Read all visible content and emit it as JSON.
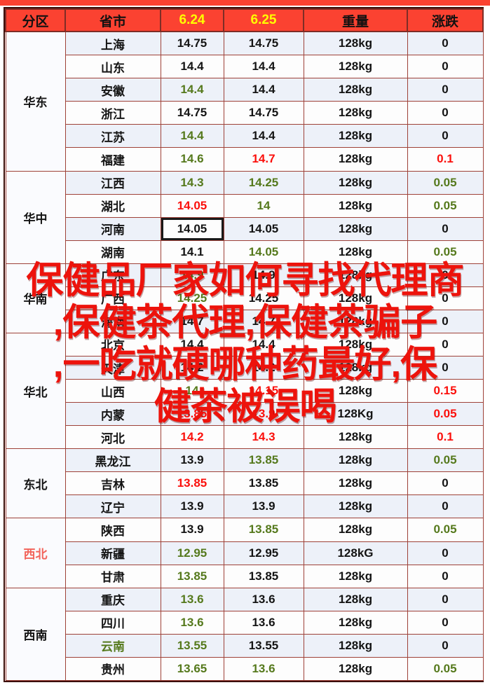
{
  "table": {
    "columns": [
      {
        "label": "分区",
        "color": "k"
      },
      {
        "label": "省市",
        "color": "k"
      },
      {
        "label": "6.24",
        "color": "y"
      },
      {
        "label": "6.25",
        "color": "y"
      },
      {
        "label": "重量",
        "color": "k"
      },
      {
        "label": "涨跌",
        "color": "k"
      }
    ],
    "regions": [
      {
        "name": "华东",
        "nc": "k",
        "rows": [
          {
            "province": "上海",
            "pc": "k",
            "v1": "14.75",
            "c1": "k",
            "v2": "14.75",
            "c2": "k",
            "w": "128kg",
            "chg": "0",
            "c3": "k",
            "sel": false
          },
          {
            "province": "山东",
            "pc": "k",
            "v1": "14.4",
            "c1": "k",
            "v2": "14.4",
            "c2": "k",
            "w": "128kg",
            "chg": "0",
            "c3": "k",
            "sel": false
          },
          {
            "province": "安徽",
            "pc": "k",
            "v1": "14.4",
            "c1": "g",
            "v2": "14.4",
            "c2": "k",
            "w": "128kg",
            "chg": "0",
            "c3": "k",
            "sel": false
          },
          {
            "province": "浙江",
            "pc": "k",
            "v1": "14.75",
            "c1": "k",
            "v2": "14.75",
            "c2": "k",
            "w": "128kg",
            "chg": "0",
            "c3": "k",
            "sel": false
          },
          {
            "province": "江苏",
            "pc": "k",
            "v1": "14.4",
            "c1": "g",
            "v2": "14.4",
            "c2": "k",
            "w": "128kg",
            "chg": "0",
            "c3": "k",
            "sel": false
          },
          {
            "province": "福建",
            "pc": "k",
            "v1": "14.6",
            "c1": "g",
            "v2": "14.7",
            "c2": "r",
            "w": "128kg",
            "chg": "0.1",
            "c3": "r",
            "sel": false
          }
        ]
      },
      {
        "name": "华中",
        "nc": "k",
        "rows": [
          {
            "province": "江西",
            "pc": "k",
            "v1": "14.3",
            "c1": "g",
            "v2": "14.25",
            "c2": "g",
            "w": "128kg",
            "chg": "0.05",
            "c3": "g",
            "sel": false
          },
          {
            "province": "湖北",
            "pc": "k",
            "v1": "14.05",
            "c1": "r",
            "v2": "14",
            "c2": "g",
            "w": "128kg",
            "chg": "0.05",
            "c3": "g",
            "sel": false
          },
          {
            "province": "河南",
            "pc": "k",
            "v1": "14.05",
            "c1": "k",
            "v2": "14.05",
            "c2": "k",
            "w": "128kg",
            "chg": "0",
            "c3": "k",
            "sel": true
          },
          {
            "province": "湖南",
            "pc": "k",
            "v1": "14.1",
            "c1": "k",
            "v2": "14.05",
            "c2": "g",
            "w": "128kg",
            "chg": "0.05",
            "c3": "g",
            "sel": false
          }
        ]
      },
      {
        "name": "华南",
        "nc": "k",
        "rows": [
          {
            "province": "广东",
            "pc": "k",
            "v1": "14.9",
            "c1": "g",
            "v2": "14.9",
            "c2": "k",
            "w": "128kg",
            "chg": "0",
            "c3": "k",
            "sel": false
          },
          {
            "province": "广西",
            "pc": "k",
            "v1": "14.25",
            "c1": "g",
            "v2": "14.25",
            "c2": "k",
            "w": "128kg",
            "chg": "0",
            "c3": "k",
            "sel": false
          },
          {
            "province": "海南",
            "pc": "k",
            "v1": "14.7",
            "c1": "k",
            "v2": "14.7",
            "c2": "k",
            "w": "128kg",
            "chg": "0",
            "c3": "k",
            "sel": false
          }
        ]
      },
      {
        "name": "华北",
        "nc": "k",
        "rows": [
          {
            "province": "北京",
            "pc": "k",
            "v1": "14.4",
            "c1": "k",
            "v2": "14.4",
            "c2": "k",
            "w": "128kg",
            "chg": "0",
            "c3": "k",
            "sel": false
          },
          {
            "province": "天津",
            "pc": "k",
            "v1": "14.2",
            "c1": "k",
            "v2": "14.2",
            "c2": "k",
            "w": "128kg",
            "chg": "0",
            "c3": "k",
            "sel": false
          },
          {
            "province": "山西",
            "pc": "k",
            "v1": "14",
            "c1": "g",
            "v2": "14.15",
            "c2": "r",
            "w": "128kg",
            "chg": "0.15",
            "c3": "r",
            "sel": false
          },
          {
            "province": "内蒙",
            "pc": "k",
            "v1": "13.85",
            "c1": "r",
            "v2": "13.9",
            "c2": "r",
            "w": "128Kg",
            "chg": "0.05",
            "c3": "r",
            "sel": false
          },
          {
            "province": "河北",
            "pc": "k",
            "v1": "14.2",
            "c1": "r",
            "v2": "14.3",
            "c2": "r",
            "w": "128kg",
            "chg": "0.1",
            "c3": "r",
            "sel": false
          }
        ]
      },
      {
        "name": "东北",
        "nc": "k",
        "rows": [
          {
            "province": "黑龙江",
            "pc": "k",
            "v1": "13.9",
            "c1": "k",
            "v2": "13.85",
            "c2": "g",
            "w": "128kg",
            "chg": "0.05",
            "c3": "g",
            "sel": false
          },
          {
            "province": "吉林",
            "pc": "k",
            "v1": "13.85",
            "c1": "r",
            "v2": "13.85",
            "c2": "k",
            "w": "128kg",
            "chg": "0",
            "c3": "k",
            "sel": false
          },
          {
            "province": "辽宁",
            "pc": "k",
            "v1": "13.9",
            "c1": "k",
            "v2": "13.9",
            "c2": "k",
            "w": "128kg",
            "chg": "0",
            "c3": "k",
            "sel": false
          }
        ]
      },
      {
        "name": "西北",
        "nc": "cr",
        "rows": [
          {
            "province": "陕西",
            "pc": "k",
            "v1": "13.9",
            "c1": "k",
            "v2": "13.85",
            "c2": "g",
            "w": "128kg",
            "chg": "0.05",
            "c3": "g",
            "sel": false
          },
          {
            "province": "新疆",
            "pc": "k",
            "v1": "12.95",
            "c1": "g",
            "v2": "12.95",
            "c2": "k",
            "w": "128kG",
            "chg": "0",
            "c3": "k",
            "sel": false
          },
          {
            "province": "甘肃",
            "pc": "k",
            "v1": "13.85",
            "c1": "g",
            "v2": "13.85",
            "c2": "k",
            "w": "128kg",
            "chg": "0",
            "c3": "k",
            "sel": false
          }
        ]
      },
      {
        "name": "西南",
        "nc": "k",
        "rows": [
          {
            "province": "重庆",
            "pc": "k",
            "v1": "13.6",
            "c1": "g",
            "v2": "13.6",
            "c2": "k",
            "w": "128kg",
            "chg": "0",
            "c3": "k",
            "sel": false
          },
          {
            "province": "四川",
            "pc": "k",
            "v1": "13.6",
            "c1": "g",
            "v2": "13.6",
            "c2": "k",
            "w": "128kg",
            "chg": "0",
            "c3": "k",
            "sel": false
          },
          {
            "province": "云南",
            "pc": "g",
            "v1": "13.55",
            "c1": "g",
            "v2": "13.55",
            "c2": "k",
            "w": "128kg",
            "chg": "0",
            "c3": "k",
            "sel": false
          },
          {
            "province": "贵州",
            "pc": "k",
            "v1": "13.65",
            "c1": "g",
            "v2": "13.6",
            "c2": "g",
            "w": "128kg",
            "chg": "0.05",
            "c3": "g",
            "sel": false
          }
        ]
      }
    ]
  },
  "watermark": {
    "full_text": "保健品厂家如何寻找代理商,保健茶代理,保健茶骗子,一吃就硬哪种药最好,保健茶被误喝",
    "lines": [
      "保健品厂家如何寻找代理商",
      ",保健茶代理,保健茶骗子",
      ",一吃就硬哪种药最好,保",
      "健茶被误喝"
    ]
  },
  "colors": {
    "header_bg": "#fb4231",
    "header_date_text": "#ffff00",
    "price_up": "#fb100c",
    "price_down": "#55791c",
    "neutral": "#141414",
    "watermark_text": "#ed130c",
    "grid_border": "#9e4138",
    "row_alt_bg": "#edf1f9"
  }
}
